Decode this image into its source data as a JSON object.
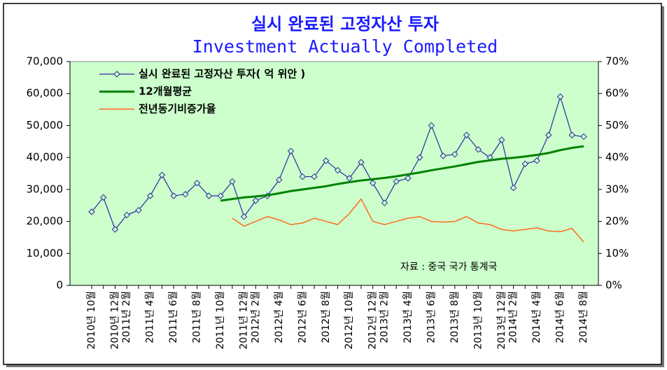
{
  "chart_data": {
    "type": "line",
    "title": "실시 완료된 고정자산 투자",
    "subtitle": "Investment Actually Completed",
    "annotation": "자료 : 중국 국가 통계국",
    "categories": [
      "2010년 10월",
      null,
      "2010년 12월",
      "2011년 2월",
      null,
      "2011년 4월",
      null,
      "2011년 6월",
      null,
      "2011년 8월",
      null,
      "2011년 10월",
      null,
      "2011년 12월",
      "2012년 2월",
      null,
      "2012년 4월",
      null,
      "2012년 6월",
      null,
      "2012년 8월",
      null,
      "2012년 10월",
      null,
      "2012년 12월",
      "2013년 2월",
      null,
      "2013년 4월",
      null,
      "2013년 6월",
      null,
      "2013년 8월",
      null,
      "2013년 10월",
      null,
      "2013년 12월",
      "2014년 2월",
      null,
      "2014년 4월",
      null,
      "2014년 6월",
      null,
      "2014년 8월"
    ],
    "series": [
      {
        "name": "실시 완료된 고정자산 투자( 억 위안 )",
        "color": "#2b2b9e",
        "marker": "diamond",
        "values": [
          23000,
          27500,
          17500,
          22000,
          23500,
          28000,
          34500,
          28000,
          28500,
          32000,
          28000,
          28000,
          32500,
          21500,
          26500,
          28000,
          33000,
          42000,
          34000,
          34000,
          39000,
          36000,
          33500,
          38500,
          32000,
          25800,
          32500,
          33500,
          40000,
          50000,
          40500,
          41000,
          47000,
          42500,
          40000,
          45500,
          30500,
          38000,
          39000,
          47000,
          59000,
          47000,
          46500
        ]
      },
      {
        "name": "12개월평균",
        "color": "#008000",
        "width": 3,
        "values": [
          null,
          null,
          null,
          null,
          null,
          null,
          null,
          null,
          null,
          null,
          null,
          26500,
          27000,
          27500,
          27800,
          28200,
          28800,
          29500,
          30000,
          30500,
          31000,
          31700,
          32300,
          32800,
          33200,
          33600,
          34100,
          34700,
          35300,
          36000,
          36600,
          37200,
          37900,
          38600,
          39100,
          39600,
          39900,
          40300,
          40800,
          41400,
          42300,
          43000,
          43500
        ]
      },
      {
        "name": "전년동기비증가율",
        "color": "#ff6a1a",
        "width": 1.5,
        "axis": "y2",
        "values": [
          null,
          null,
          null,
          null,
          null,
          null,
          null,
          null,
          null,
          null,
          null,
          null,
          21,
          18.5,
          20,
          21.5,
          20.5,
          19,
          19.5,
          21,
          20,
          19,
          22.5,
          27,
          20,
          19,
          20,
          21,
          21.5,
          20,
          19.8,
          20,
          21.5,
          19.5,
          19,
          17.5,
          17,
          17.5,
          18,
          17,
          16.8,
          17.8,
          13.5
        ]
      }
    ],
    "ylim": [
      0,
      70000
    ],
    "yticks": [
      0,
      {
        "value": 10000,
        "label": "10,000"
      },
      {
        "value": 20000,
        "label": "20,000"
      },
      {
        "value": 30000,
        "label": "30,000"
      },
      {
        "value": 40000,
        "label": "40,000"
      },
      {
        "value": 50000,
        "label": "50,000"
      },
      {
        "value": 60000,
        "label": "60,000"
      },
      {
        "value": 70000,
        "label": "70,000"
      }
    ],
    "y2lim": [
      0,
      70
    ],
    "y2ticks": [
      {
        "value": 0,
        "label": "0%"
      },
      {
        "value": 10,
        "label": "10%"
      },
      {
        "value": 20,
        "label": "20%"
      },
      {
        "value": 30,
        "label": "30%"
      },
      {
        "value": 40,
        "label": "40%"
      },
      {
        "value": 50,
        "label": "50%"
      },
      {
        "value": 60,
        "label": "60%"
      },
      {
        "value": 70,
        "label": "70%"
      }
    ],
    "background": "#ccffcc",
    "legend": "upper left"
  }
}
